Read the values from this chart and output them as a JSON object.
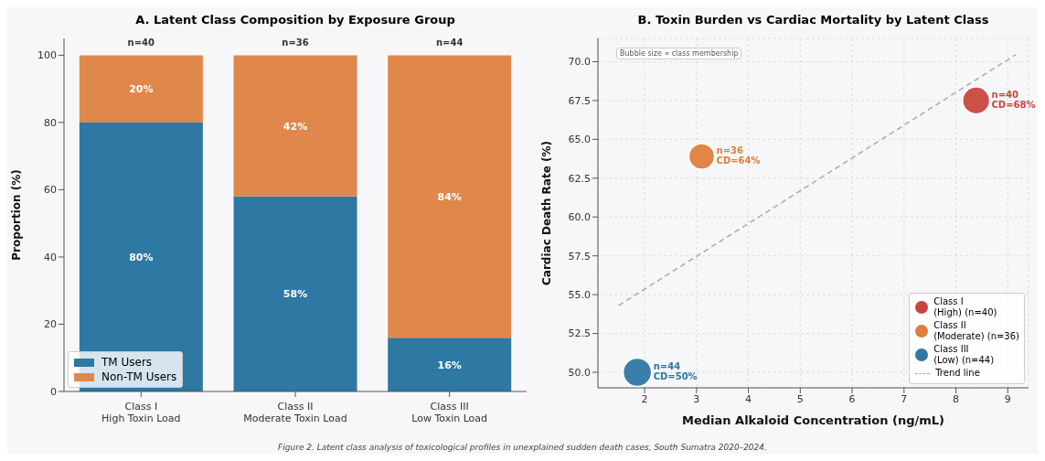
{
  "chart_data": [
    {
      "type": "bar",
      "title": "A. Latent Class Composition by Exposure Group",
      "ylabel": "Proportion (%)",
      "categories": [
        "Class I\nHigh Toxin Load",
        "Class II\nModerate Toxin Load",
        "Class III\nLow Toxin Load"
      ],
      "series": [
        {
          "name": "TM Users",
          "color": "#2e78a4",
          "values": [
            80,
            58,
            16
          ],
          "value_labels": [
            "80%",
            "58%",
            "16%"
          ]
        },
        {
          "name": "Non-TM Users",
          "color": "#e0874b",
          "values": [
            20,
            42,
            84
          ],
          "value_labels": [
            "20%",
            "42%",
            "84%"
          ]
        }
      ],
      "stacked": true,
      "ylim": [
        0,
        105
      ],
      "yticks": [
        0,
        20,
        40,
        60,
        80,
        100
      ],
      "grid": false,
      "legend": "bottom left",
      "annotations": [
        {
          "text": "n=40",
          "x": "Class I\nHigh Toxin Load",
          "y": 100
        },
        {
          "text": "n=36",
          "x": "Class II\nModerate Toxin Load",
          "y": 100
        },
        {
          "text": "n=44",
          "x": "Class III\nLow Toxin Load",
          "y": 100
        },
        "Figure 2. Latent class analysis of toxicological profiles in unexplained sudden death cases, South Sumatra 2020–2024."
      ]
    },
    {
      "type": "bubble",
      "title": "B. Toxin Burden vs Cardiac Mortality by Latent Class",
      "xlabel": "Median Alkaloid Concentration (ng/mL)",
      "ylabel": "Cardiac Death Rate (%)",
      "series": [
        {
          "name": "Class I\n(High) (n=40)",
          "color": "#c8473d",
          "x": [
            8.39
          ],
          "values": [
            67.5
          ],
          "sizes": [
            0.91
          ],
          "value_labels": [
            "n=40\nCD=68%"
          ]
        },
        {
          "name": "Class II\n(Moderate) (n=36)",
          "color": "#e07e3c",
          "x": [
            3.1
          ],
          "values": [
            63.9
          ],
          "sizes": [
            0.82
          ],
          "value_labels": [
            "n=36\nCD=64%"
          ]
        },
        {
          "name": "Class III\n(Low) (n=44)",
          "color": "#2e78a4",
          "x": [
            1.86
          ],
          "values": [
            50.0
          ],
          "sizes": [
            1
          ],
          "value_labels": [
            "n=44\nCD=50%"
          ]
        },
        {
          "name": "Trend line",
          "type": "line",
          "color": "#aaaaaa",
          "line_style": "dashed",
          "x": [
            1.5,
            9.15
          ],
          "values": [
            54.3,
            70.45
          ]
        }
      ],
      "xlim": [
        1.1,
        9.4
      ],
      "xticks": [
        2,
        3,
        4,
        5,
        6,
        7,
        8,
        9
      ],
      "ylim": [
        49,
        71.5
      ],
      "yticks": [
        {
          "value": 50,
          "label": "50.0"
        },
        {
          "value": 52.5,
          "label": "52.5"
        },
        {
          "value": 55,
          "label": "55.0"
        },
        {
          "value": 57.5,
          "label": "57.5"
        },
        {
          "value": 60,
          "label": "60.0"
        },
        {
          "value": 62.5,
          "label": "62.5"
        },
        {
          "value": 65,
          "label": "65.0"
        },
        {
          "value": 67.5,
          "label": "67.5"
        },
        {
          "value": 70,
          "label": "70.0"
        }
      ],
      "grid": true,
      "legend": "bottom right",
      "annotations": [
        "Bubble size ∝ class membership"
      ]
    }
  ]
}
